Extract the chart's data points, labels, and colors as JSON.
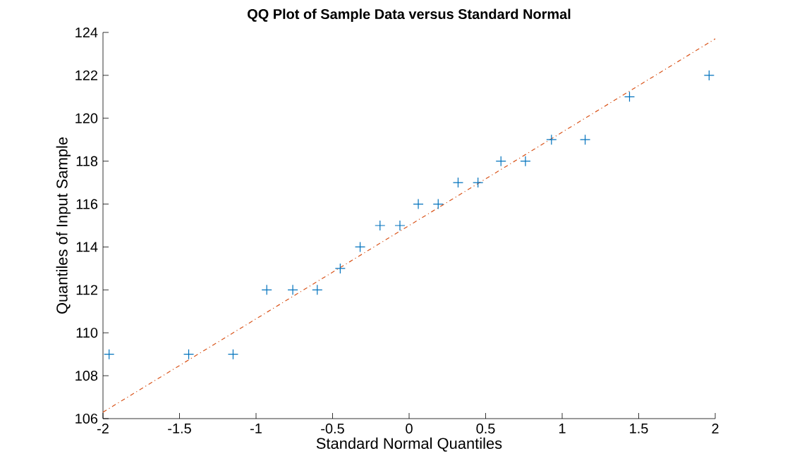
{
  "chart_data": {
    "type": "scatter",
    "title": "QQ Plot of Sample Data versus Standard Normal",
    "xlabel": "Standard Normal Quantiles",
    "ylabel": "Quantiles of Input Sample",
    "xlim": [
      -2,
      2
    ],
    "ylim": [
      106,
      124
    ],
    "xticks": [
      -2,
      -1.5,
      -1,
      -0.5,
      0,
      0.5,
      1,
      1.5,
      2
    ],
    "yticks": [
      106,
      108,
      110,
      112,
      114,
      116,
      118,
      120,
      122,
      124
    ],
    "grid": false,
    "series": [
      {
        "marker": "cross",
        "color": "#0072bd",
        "x": [
          -1.96,
          -1.44,
          -1.15,
          -0.93,
          -0.76,
          -0.6,
          -0.45,
          -0.32,
          -0.19,
          -0.06,
          0.06,
          0.19,
          0.32,
          0.45,
          0.6,
          0.76,
          0.93,
          1.15,
          1.44,
          1.96
        ],
        "values": [
          109,
          109,
          109,
          112,
          112,
          112,
          113,
          114,
          115,
          115,
          116,
          116,
          117,
          117,
          118,
          118,
          119,
          119,
          121,
          122
        ]
      },
      {
        "type": "line",
        "marker": "none",
        "line_style": "dashed",
        "color": "#d95319",
        "x": [
          -2,
          2
        ],
        "values": [
          106.3,
          123.7
        ]
      }
    ]
  }
}
